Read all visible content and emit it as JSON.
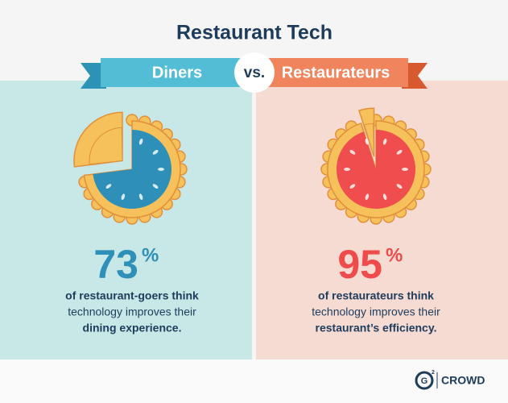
{
  "title": "Restaurant Tech",
  "vs": "vs.",
  "panels": [
    {
      "label": "Diners",
      "value": 73,
      "percent_sign": "%",
      "lines": [
        "of restaurant-goers think",
        "technology improves their",
        "dining experience."
      ]
    },
    {
      "label": "Restaurateurs",
      "value": 95,
      "percent_sign": "%",
      "lines": [
        "of restaurateurs think",
        "technology improves their",
        "restaurant’s efficiency."
      ]
    }
  ],
  "footer": {
    "logo_mark": "G",
    "logo_sup": "2",
    "brand": "CROWD"
  }
}
